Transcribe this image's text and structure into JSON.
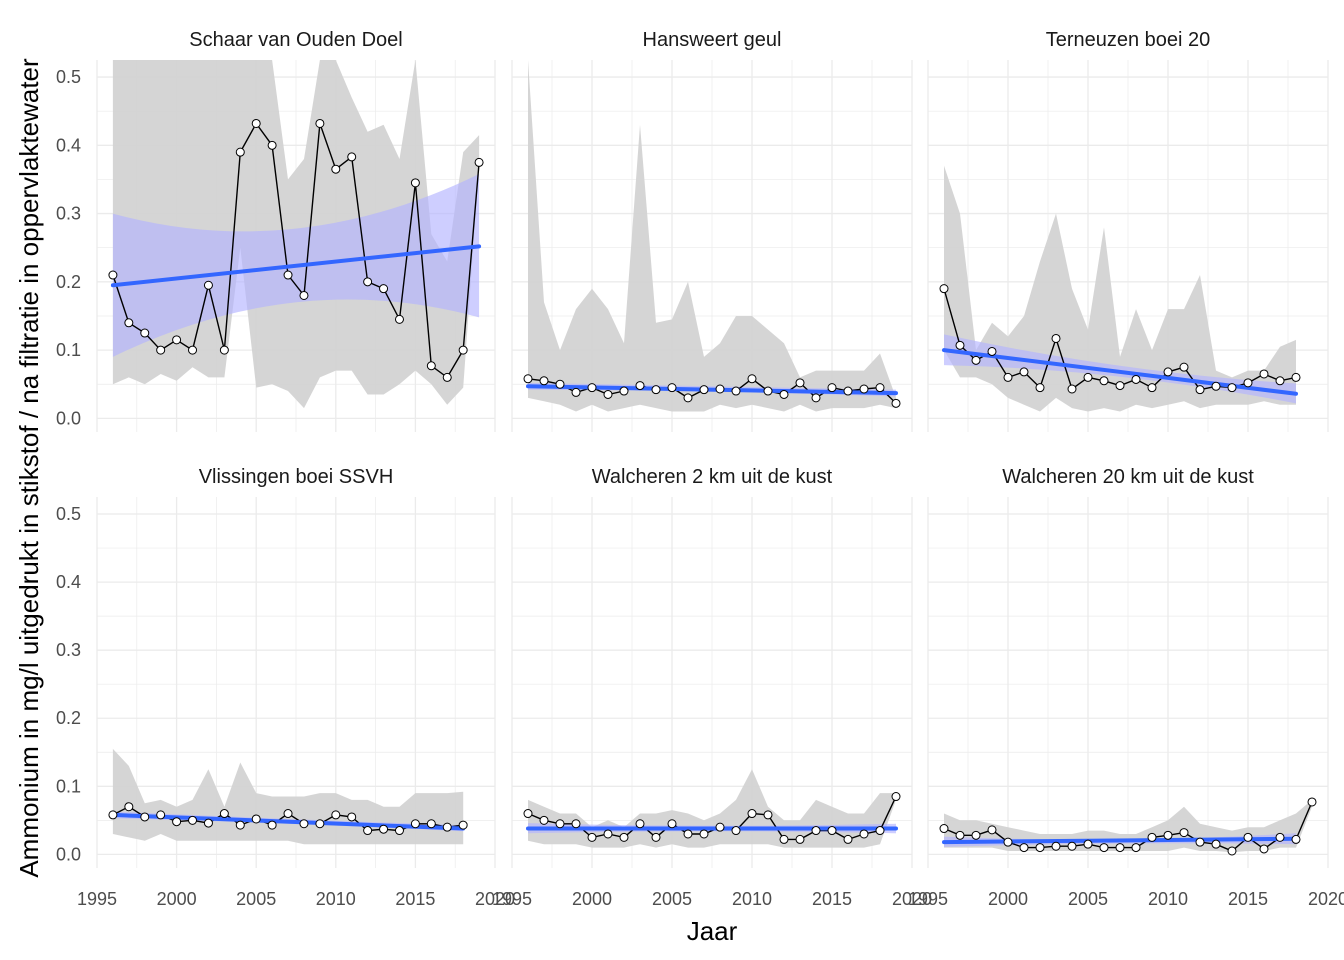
{
  "chart_data": {
    "type": "line",
    "xlabel": "Jaar",
    "ylabel": "Ammonium in mg/l uitgedrukt in stikstof / na filtratie in oppervlaktewater",
    "xlim": [
      1995,
      2020
    ],
    "ylim": [
      -0.02,
      0.525
    ],
    "xticks": [
      1995,
      2000,
      2005,
      2010,
      2015,
      2020
    ],
    "yticks": [
      0.0,
      0.1,
      0.2,
      0.3,
      0.4,
      0.5
    ],
    "ytick_labels": [
      "0.0",
      "0.1",
      "0.2",
      "0.3",
      "0.4",
      "0.5"
    ],
    "grid": true,
    "colors": {
      "points": "#000000",
      "trend": "#3366ff",
      "trend_band": "#b3b3ff",
      "range": "#d3d3d3"
    },
    "panels": [
      {
        "title": "Schaar van Ouden Doel",
        "x": [
          1996,
          1997,
          1998,
          1999,
          2000,
          2001,
          2002,
          2003,
          2004,
          2005,
          2006,
          2007,
          2008,
          2009,
          2010,
          2011,
          2012,
          2013,
          2014,
          2015,
          2016,
          2017,
          2018,
          2019
        ],
        "y": [
          0.21,
          0.14,
          0.125,
          0.1,
          0.115,
          0.1,
          0.195,
          0.1,
          0.39,
          0.432,
          0.4,
          0.21,
          0.18,
          0.432,
          0.365,
          0.383,
          0.2,
          0.19,
          0.145,
          0.345,
          0.077,
          0.06,
          0.1,
          0.375
        ],
        "lower": [
          0.05,
          0.06,
          0.05,
          0.065,
          0.055,
          0.075,
          0.06,
          0.06,
          0.25,
          0.045,
          0.05,
          0.04,
          0.015,
          0.06,
          0.07,
          0.07,
          0.035,
          0.035,
          0.05,
          0.07,
          0.05,
          0.02,
          0.045,
          0.37
        ],
        "upper": [
          0.9,
          0.9,
          0.9,
          0.9,
          0.9,
          0.9,
          0.9,
          0.9,
          0.9,
          0.9,
          0.9,
          0.35,
          0.38,
          0.9,
          0.9,
          0.47,
          0.42,
          0.43,
          0.38,
          0.9,
          0.27,
          0.23,
          0.39,
          0.415
        ],
        "trend": {
          "x": [
            1996,
            2019
          ],
          "y": [
            0.195,
            0.252
          ],
          "band_start": [
            0.09,
            0.3
          ],
          "band_mid": [
            0.17,
            0.278
          ],
          "band_end": [
            0.148,
            0.358
          ]
        }
      },
      {
        "title": "Hansweert geul",
        "x": [
          1996,
          1997,
          1998,
          1999,
          2000,
          2001,
          2002,
          2003,
          2004,
          2005,
          2006,
          2007,
          2008,
          2009,
          2010,
          2011,
          2012,
          2013,
          2014,
          2015,
          2016,
          2017,
          2018,
          2019
        ],
        "y": [
          0.058,
          0.055,
          0.05,
          0.038,
          0.045,
          0.035,
          0.04,
          0.048,
          0.042,
          0.045,
          0.03,
          0.042,
          0.043,
          0.04,
          0.058,
          0.04,
          0.035,
          0.052,
          0.03,
          0.045,
          0.04,
          0.043,
          0.045,
          0.022
        ],
        "lower": [
          0.03,
          0.025,
          0.02,
          0.01,
          0.02,
          0.01,
          0.015,
          0.02,
          0.015,
          0.01,
          0.01,
          0.01,
          0.02,
          0.015,
          0.02,
          0.015,
          0.01,
          0.02,
          0.01,
          0.015,
          0.015,
          0.015,
          0.02,
          0.015
        ],
        "upper": [
          0.9,
          0.17,
          0.1,
          0.16,
          0.19,
          0.16,
          0.11,
          0.43,
          0.14,
          0.145,
          0.2,
          0.09,
          0.11,
          0.15,
          0.15,
          0.13,
          0.11,
          0.06,
          0.07,
          0.07,
          0.07,
          0.07,
          0.095,
          0.03
        ],
        "trend": {
          "x": [
            1996,
            2019
          ],
          "y": [
            0.047,
            0.037
          ],
          "band_start": [
            0.042,
            0.052
          ],
          "band_mid": [
            0.039,
            0.047
          ],
          "band_end": [
            0.032,
            0.042
          ]
        }
      },
      {
        "title": "Terneuzen boei 20",
        "x": [
          1996,
          1997,
          1998,
          1999,
          2000,
          2001,
          2002,
          2003,
          2004,
          2005,
          2006,
          2007,
          2008,
          2009,
          2010,
          2011,
          2012,
          2013,
          2014,
          2015,
          2016,
          2017,
          2018
        ],
        "y": [
          0.19,
          0.107,
          0.085,
          0.098,
          0.06,
          0.068,
          0.045,
          0.117,
          0.043,
          0.06,
          0.055,
          0.048,
          0.057,
          0.045,
          0.068,
          0.075,
          0.042,
          0.047,
          0.045,
          0.052,
          0.065,
          0.055,
          0.06
        ],
        "lower": [
          0.1,
          0.06,
          0.06,
          0.05,
          0.03,
          0.02,
          0.01,
          0.03,
          0.015,
          0.01,
          0.015,
          0.01,
          0.02,
          0.015,
          0.02,
          0.025,
          0.015,
          0.02,
          0.02,
          0.02,
          0.025,
          0.02,
          0.02
        ],
        "upper": [
          0.37,
          0.3,
          0.1,
          0.14,
          0.12,
          0.15,
          0.23,
          0.3,
          0.19,
          0.13,
          0.28,
          0.09,
          0.16,
          0.1,
          0.16,
          0.16,
          0.21,
          0.07,
          0.06,
          0.07,
          0.07,
          0.105,
          0.115
        ],
        "trend": {
          "x": [
            1996,
            2018
          ],
          "y": [
            0.1,
            0.036
          ],
          "band_start": [
            0.078,
            0.123
          ],
          "band_mid": [
            0.061,
            0.077
          ],
          "band_end": [
            0.022,
            0.051
          ]
        }
      },
      {
        "title": "Vlissingen boei SSVH",
        "x": [
          1996,
          1997,
          1998,
          1999,
          2000,
          2001,
          2002,
          2003,
          2004,
          2005,
          2006,
          2007,
          2008,
          2009,
          2010,
          2011,
          2012,
          2013,
          2014,
          2015,
          2016,
          2017,
          2018
        ],
        "y": [
          0.058,
          0.07,
          0.055,
          0.058,
          0.048,
          0.05,
          0.046,
          0.06,
          0.043,
          0.052,
          0.043,
          0.06,
          0.045,
          0.045,
          0.058,
          0.055,
          0.035,
          0.037,
          0.035,
          0.045,
          0.045,
          0.04,
          0.043
        ],
        "lower": [
          0.03,
          0.025,
          0.02,
          0.03,
          0.02,
          0.02,
          0.02,
          0.02,
          0.02,
          0.02,
          0.02,
          0.02,
          0.015,
          0.015,
          0.015,
          0.015,
          0.015,
          0.015,
          0.015,
          0.015,
          0.015,
          0.015,
          0.015
        ],
        "upper": [
          0.155,
          0.13,
          0.075,
          0.08,
          0.07,
          0.08,
          0.125,
          0.07,
          0.135,
          0.09,
          0.085,
          0.085,
          0.085,
          0.09,
          0.09,
          0.08,
          0.08,
          0.07,
          0.07,
          0.09,
          0.09,
          0.09,
          0.092
        ],
        "trend": {
          "x": [
            1996,
            2018
          ],
          "y": [
            0.058,
            0.038
          ],
          "band_start": [
            0.053,
            0.063
          ],
          "band_mid": [
            0.045,
            0.052
          ],
          "band_end": [
            0.034,
            0.043
          ]
        }
      },
      {
        "title": "Walcheren 2 km uit de kust",
        "x": [
          1996,
          1997,
          1998,
          1999,
          2000,
          2001,
          2002,
          2003,
          2004,
          2005,
          2006,
          2007,
          2008,
          2009,
          2010,
          2011,
          2012,
          2013,
          2014,
          2015,
          2016,
          2017,
          2018,
          2019
        ],
        "y": [
          0.06,
          0.05,
          0.045,
          0.045,
          0.025,
          0.03,
          0.025,
          0.045,
          0.025,
          0.045,
          0.03,
          0.03,
          0.04,
          0.035,
          0.06,
          0.058,
          0.022,
          0.022,
          0.035,
          0.035,
          0.022,
          0.03,
          0.035,
          0.085
        ],
        "lower": [
          0.02,
          0.015,
          0.015,
          0.015,
          0.01,
          0.01,
          0.01,
          0.015,
          0.01,
          0.015,
          0.01,
          0.01,
          0.015,
          0.015,
          0.015,
          0.015,
          0.01,
          0.01,
          0.01,
          0.01,
          0.01,
          0.01,
          0.015,
          0.08
        ],
        "upper": [
          0.08,
          0.07,
          0.06,
          0.06,
          0.04,
          0.05,
          0.04,
          0.06,
          0.06,
          0.065,
          0.06,
          0.05,
          0.06,
          0.08,
          0.125,
          0.07,
          0.05,
          0.05,
          0.08,
          0.07,
          0.06,
          0.06,
          0.09,
          0.09
        ],
        "trend": {
          "x": [
            1996,
            2019
          ],
          "y": [
            0.038,
            0.038
          ],
          "band_start": [
            0.031,
            0.046
          ],
          "band_mid": [
            0.034,
            0.042
          ],
          "band_end": [
            0.031,
            0.045
          ]
        }
      },
      {
        "title": "Walcheren 20 km uit de kust",
        "x": [
          1996,
          1997,
          1998,
          1999,
          2000,
          2001,
          2002,
          2003,
          2004,
          2005,
          2006,
          2007,
          2008,
          2009,
          2010,
          2011,
          2012,
          2013,
          2014,
          2015,
          2016,
          2017,
          2018,
          2019
        ],
        "y": [
          0.038,
          0.028,
          0.028,
          0.036,
          0.018,
          0.01,
          0.01,
          0.012,
          0.012,
          0.015,
          0.01,
          0.01,
          0.01,
          0.025,
          0.028,
          0.032,
          0.018,
          0.015,
          0.005,
          0.025,
          0.008,
          0.025,
          0.022,
          0.077
        ],
        "lower": [
          0.01,
          0.01,
          0.01,
          0.01,
          0.005,
          0.005,
          0.005,
          0.005,
          0.005,
          0.005,
          0.005,
          0.005,
          0.005,
          0.005,
          0.005,
          0.01,
          0.005,
          0.005,
          0.003,
          0.005,
          0.005,
          0.01,
          0.01,
          0.07
        ],
        "upper": [
          0.06,
          0.05,
          0.05,
          0.045,
          0.04,
          0.035,
          0.03,
          0.03,
          0.03,
          0.035,
          0.035,
          0.03,
          0.03,
          0.04,
          0.05,
          0.07,
          0.045,
          0.04,
          0.035,
          0.04,
          0.04,
          0.05,
          0.06,
          0.08
        ],
        "trend": {
          "x": [
            1996,
            2018
          ],
          "y": [
            0.018,
            0.023
          ],
          "band_start": [
            0.011,
            0.026
          ],
          "band_mid": [
            0.016,
            0.022
          ],
          "band_end": [
            0.015,
            0.031
          ]
        }
      }
    ]
  }
}
